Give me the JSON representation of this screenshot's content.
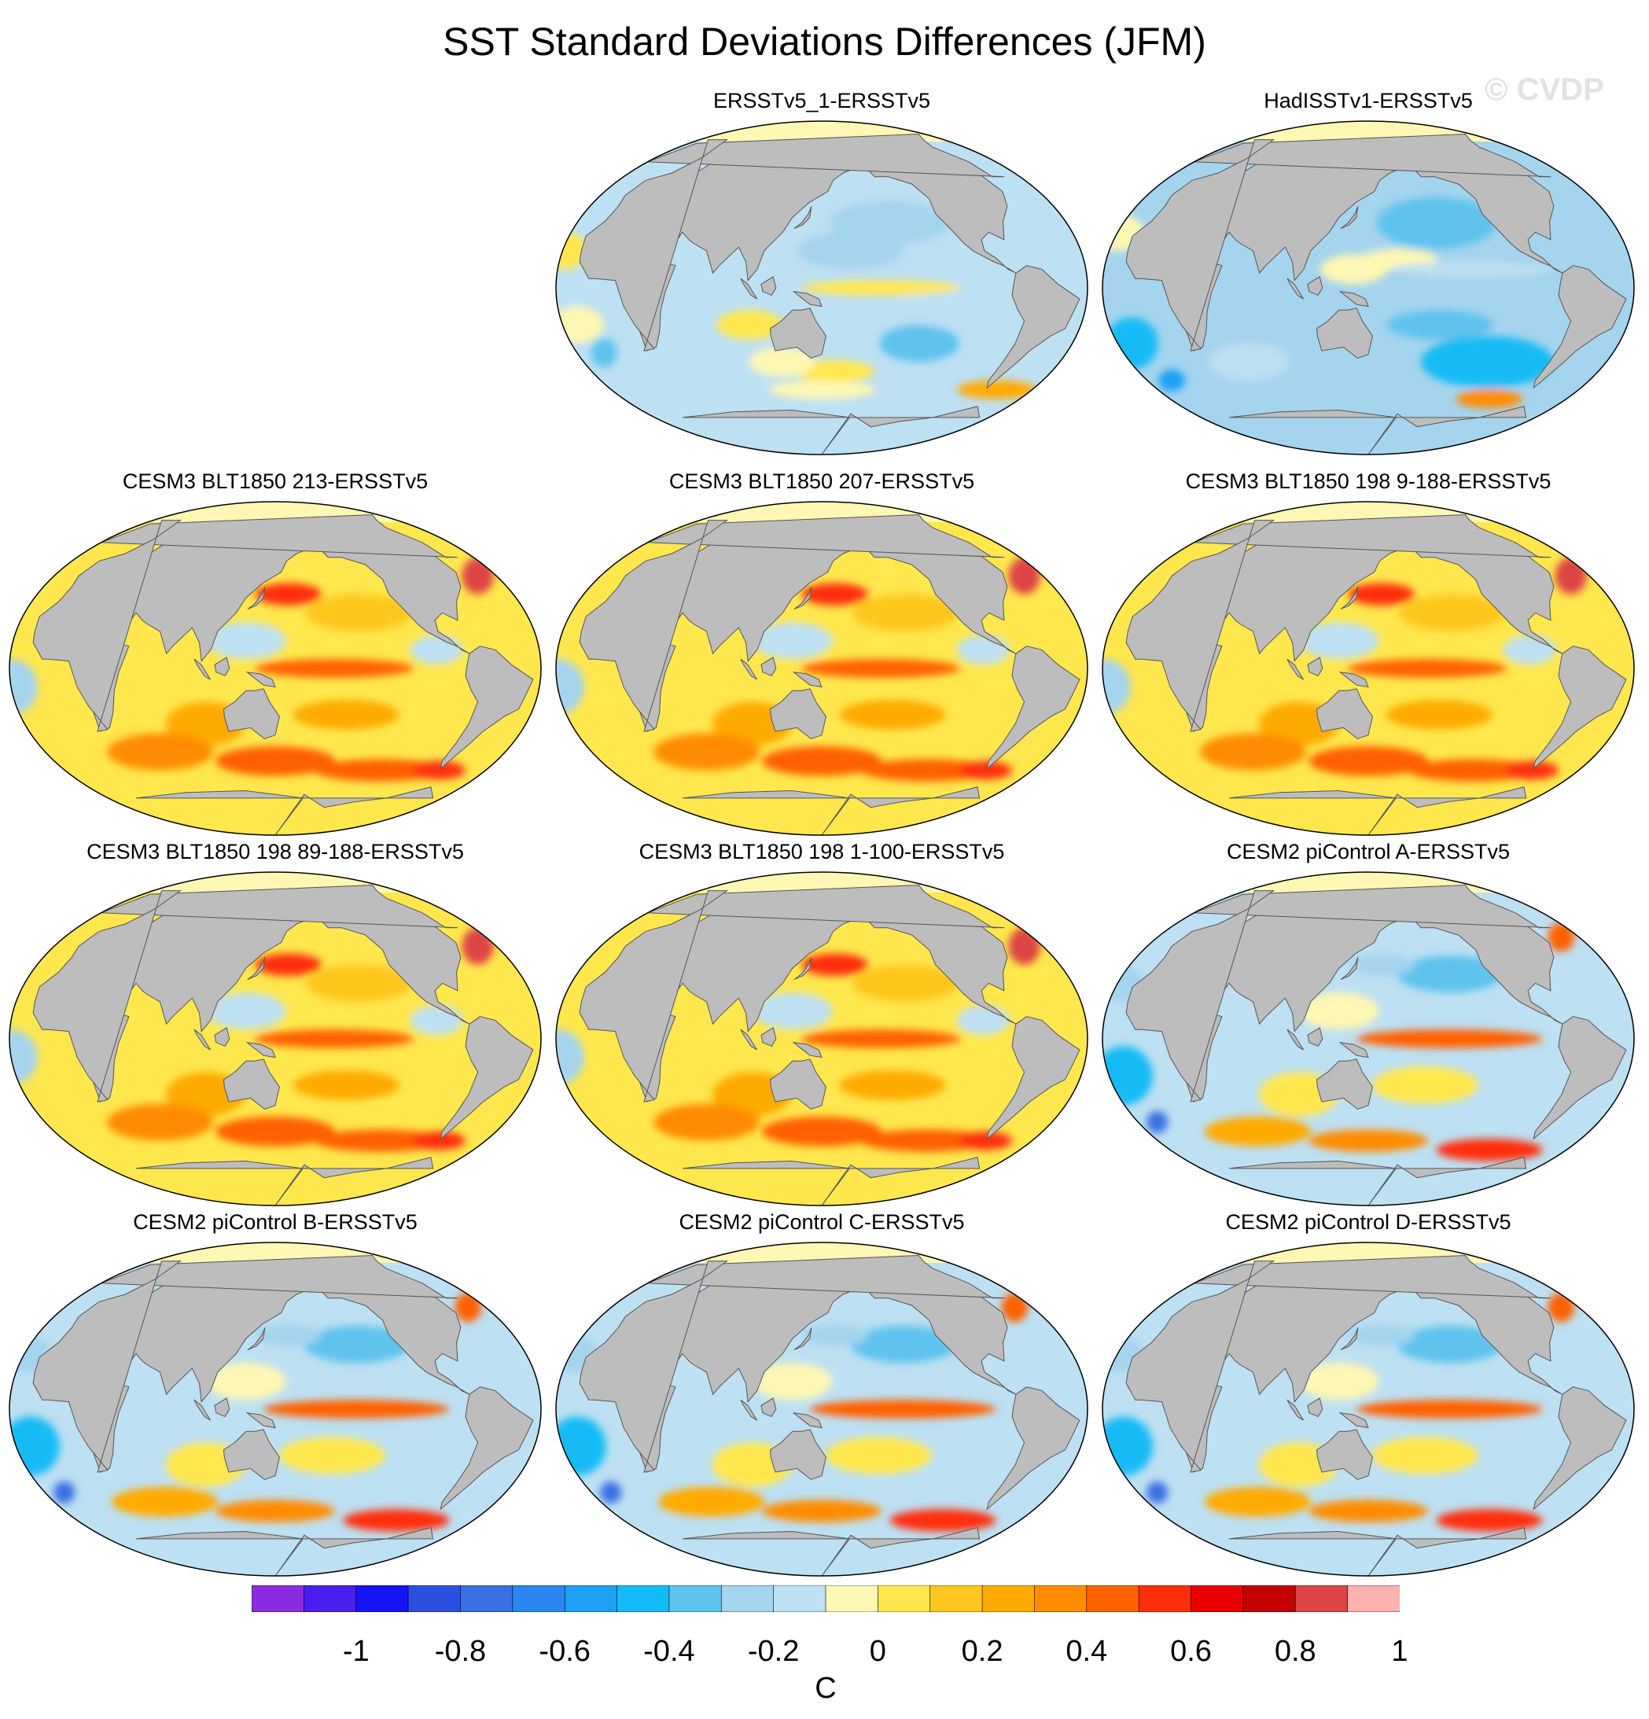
{
  "title": "SST Standard Deviations Differences (JFM)",
  "watermark": "© CVDP",
  "panels": [
    {
      "title": "ERSSTv5_1-ERSSTv5",
      "pattern": "obs1"
    },
    {
      "title": "HadISSTv1-ERSSTv5",
      "pattern": "obs2"
    },
    {
      "title": "CESM3 BLT1850 213-ERSSTv5",
      "pattern": "warm"
    },
    {
      "title": "CESM3 BLT1850 207-ERSSTv5",
      "pattern": "warm"
    },
    {
      "title": "CESM3 BLT1850 198 9-188-ERSSTv5",
      "pattern": "warm"
    },
    {
      "title": "CESM3 BLT1850 198 89-188-ERSSTv5",
      "pattern": "warm"
    },
    {
      "title": "CESM3 BLT1850 198 1-100-ERSSTv5",
      "pattern": "warm"
    },
    {
      "title": "CESM2 piControl A-ERSSTv5",
      "pattern": "cesm2"
    },
    {
      "title": "CESM2 piControl B-ERSSTv5",
      "pattern": "cesm2"
    },
    {
      "title": "CESM2 piControl C-ERSSTv5",
      "pattern": "cesm2"
    },
    {
      "title": "CESM2 piControl D-ERSSTv5",
      "pattern": "cesm2"
    }
  ],
  "colorbar": {
    "colors": [
      "#8a2be2",
      "#4b1ef0",
      "#1414f5",
      "#2d4fe0",
      "#3a6fe4",
      "#2b86f2",
      "#1ea0f4",
      "#12bbf5",
      "#5ec3ee",
      "#a5d4ee",
      "#bde0f2",
      "#fff7b3",
      "#ffe74d",
      "#ffc61f",
      "#ffaa00",
      "#ff8c00",
      "#ff6000",
      "#ff2e0a",
      "#eb0000",
      "#c40000",
      "#de4445",
      "#ffb0b0"
    ],
    "tick_labels": [
      "-1",
      "-0.8",
      "-0.6",
      "-0.4",
      "-0.2",
      "0",
      "0.2",
      "0.4",
      "0.6",
      "0.8",
      "1"
    ],
    "units": "C"
  },
  "colors": {
    "land": "#bdbdbd",
    "land_outline": "#555555"
  }
}
